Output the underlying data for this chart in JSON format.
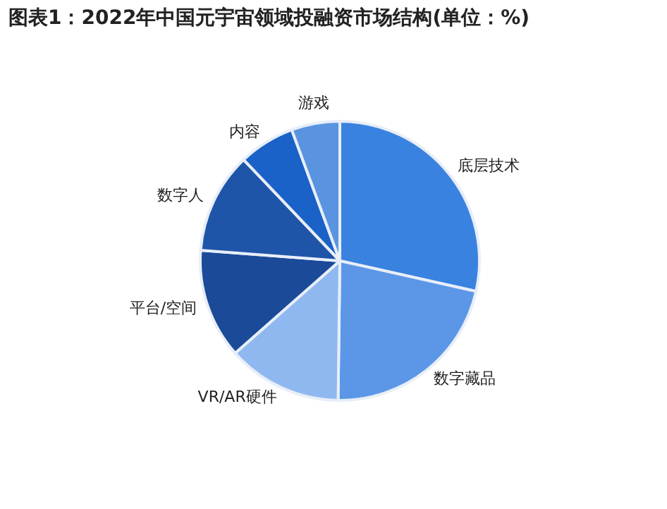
{
  "chart_data": {
    "type": "pie",
    "title": "图表1：2022年中国元宇宙领域投融资市场结构(单位：%)",
    "categories": [
      "底层技术",
      "数字藏品",
      "VR/AR硬件",
      "平台/空间",
      "数字人",
      "内容",
      "游戏"
    ],
    "values": [
      28.5,
      21.7,
      13.3,
      12.7,
      11.7,
      6.5,
      5.6
    ],
    "colors": [
      "#3a82e0",
      "#5b97e6",
      "#8fb8f0",
      "#1a4a98",
      "#1f55a8",
      "#1a62c8",
      "#5a94e0"
    ],
    "legend": false
  }
}
